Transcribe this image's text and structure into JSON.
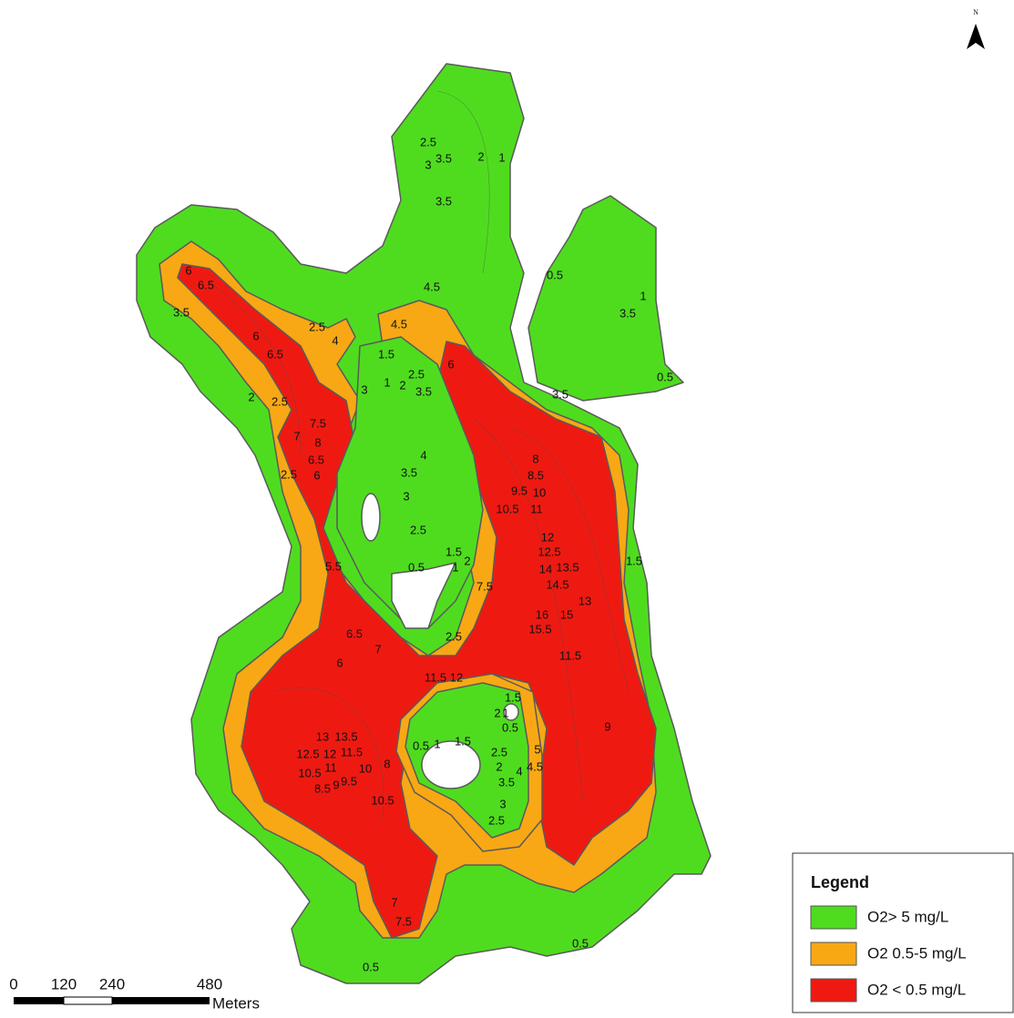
{
  "north_arrow": {
    "label": "N"
  },
  "contour_labels": [
    "2.5",
    "3",
    "3.5",
    "2",
    "1",
    "3.5",
    "0.5",
    "1",
    "3.5",
    "0.5",
    "3.5",
    "4.5",
    "4.5",
    "6",
    "6.5",
    "3.5",
    "2.5",
    "4",
    "6",
    "6.5",
    "1.5",
    "6",
    "1",
    "2",
    "2.5",
    "3.5",
    "3",
    "2",
    "2.5",
    "7.5",
    "7",
    "8",
    "6.5",
    "6",
    "2.5",
    "4",
    "3.5",
    "3",
    "2.5",
    "8",
    "8.5",
    "9.5",
    "10",
    "10.5",
    "11",
    "12",
    "12.5",
    "14",
    "13.5",
    "14.5",
    "13",
    "16",
    "15",
    "15.5",
    "11.5",
    "1.5",
    "2",
    "1",
    "0.5",
    "7.5",
    "5.5",
    "1.5",
    "2.5",
    "6.5",
    "7",
    "6",
    "11.5",
    "12",
    "1.5",
    "2",
    "1",
    "0.5",
    "9",
    "13",
    "13.5",
    "0.5",
    "1",
    "1.5",
    "2.5",
    "5",
    "12.5",
    "12",
    "11.5",
    "10",
    "8",
    "10.5",
    "11",
    "2",
    "4",
    "4.5",
    "8.5",
    "9",
    "9.5",
    "3.5",
    "10.5",
    "3",
    "2.5",
    "7",
    "7.5",
    "0.5",
    "0.5"
  ],
  "scale_bar": {
    "ticks": [
      "0",
      "120",
      "240",
      "480"
    ],
    "unit": "Meters"
  },
  "legend": {
    "title": "Legend",
    "items": [
      {
        "label": "O2> 5 mg/L",
        "color": "#4fdc1f"
      },
      {
        "label": "O2 0.5-5 mg/L",
        "color": "#f8a814"
      },
      {
        "label": "O2 < 0.5 mg/L",
        "color": "#ee1a12"
      }
    ]
  }
}
